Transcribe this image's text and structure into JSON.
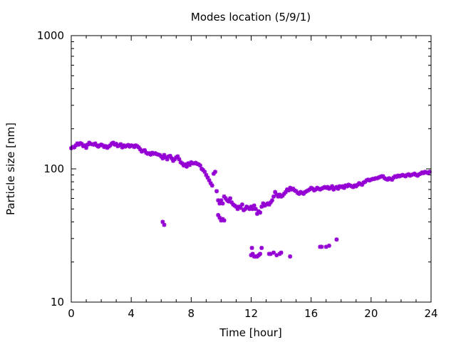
{
  "chart_data": {
    "type": "scatter",
    "title": "Modes location (5/9/1)",
    "xlabel": "Time [hour]",
    "ylabel": "Particle size [nm]",
    "xlim": [
      0,
      24
    ],
    "ylim": [
      10,
      1000
    ],
    "yscale": "log",
    "xticks": [
      0,
      4,
      8,
      12,
      16,
      20,
      24
    ],
    "xtick_labels": [
      "0",
      "4",
      "8",
      "12",
      "16",
      "20",
      "24"
    ],
    "yticks": [
      10,
      100,
      1000
    ],
    "ytick_labels": [
      "10",
      "100",
      "1000"
    ],
    "grid": false,
    "legend": "none",
    "marker_color": "#9400D3",
    "series": [
      {
        "points": [
          [
            0.0,
            143
          ],
          [
            0.1,
            146
          ],
          [
            0.2,
            145
          ],
          [
            0.3,
            150
          ],
          [
            0.4,
            155
          ],
          [
            0.5,
            152
          ],
          [
            0.6,
            156
          ],
          [
            0.7,
            154
          ],
          [
            0.8,
            148
          ],
          [
            0.9,
            150
          ],
          [
            1.0,
            144
          ],
          [
            1.1,
            152
          ],
          [
            1.2,
            157
          ],
          [
            1.3,
            154
          ],
          [
            1.4,
            153
          ],
          [
            1.5,
            152
          ],
          [
            1.6,
            155
          ],
          [
            1.7,
            150
          ],
          [
            1.8,
            147
          ],
          [
            1.9,
            150
          ],
          [
            2.0,
            152
          ],
          [
            2.1,
            150
          ],
          [
            2.2,
            146
          ],
          [
            2.3,
            148
          ],
          [
            2.4,
            144
          ],
          [
            2.5,
            147
          ],
          [
            2.6,
            150
          ],
          [
            2.7,
            155
          ],
          [
            2.8,
            157
          ],
          [
            2.9,
            152
          ],
          [
            3.0,
            154
          ],
          [
            3.1,
            148
          ],
          [
            3.2,
            150
          ],
          [
            3.3,
            153
          ],
          [
            3.4,
            145
          ],
          [
            3.5,
            150
          ],
          [
            3.6,
            147
          ],
          [
            3.7,
            149
          ],
          [
            3.8,
            151
          ],
          [
            3.9,
            147
          ],
          [
            4.0,
            150
          ],
          [
            4.1,
            149
          ],
          [
            4.2,
            146
          ],
          [
            4.3,
            150
          ],
          [
            4.4,
            148
          ],
          [
            4.5,
            145
          ],
          [
            4.6,
            140
          ],
          [
            4.7,
            135
          ],
          [
            4.8,
            137
          ],
          [
            4.9,
            138
          ],
          [
            5.0,
            132
          ],
          [
            5.1,
            130
          ],
          [
            5.2,
            131
          ],
          [
            5.3,
            128
          ],
          [
            5.4,
            132
          ],
          [
            5.5,
            130
          ],
          [
            5.6,
            131
          ],
          [
            5.7,
            129
          ],
          [
            5.8,
            128
          ],
          [
            5.9,
            127
          ],
          [
            6.0,
            124
          ],
          [
            6.1,
            120
          ],
          [
            6.2,
            127
          ],
          [
            6.3,
            122
          ],
          [
            6.4,
            118
          ],
          [
            6.5,
            124
          ],
          [
            6.6,
            125
          ],
          [
            6.7,
            120
          ],
          [
            6.8,
            115
          ],
          [
            6.9,
            118
          ],
          [
            7.0,
            122
          ],
          [
            7.1,
            124
          ],
          [
            7.2,
            118
          ],
          [
            7.3,
            112
          ],
          [
            7.4,
            110
          ],
          [
            7.5,
            106
          ],
          [
            7.6,
            108
          ],
          [
            7.7,
            104
          ],
          [
            7.8,
            110
          ],
          [
            7.9,
            107
          ],
          [
            8.0,
            112
          ],
          [
            8.1,
            110
          ],
          [
            8.2,
            110
          ],
          [
            8.3,
            111
          ],
          [
            8.4,
            109
          ],
          [
            8.5,
            108
          ],
          [
            8.6,
            106
          ],
          [
            8.7,
            100
          ],
          [
            8.8,
            98
          ],
          [
            8.9,
            95
          ],
          [
            9.0,
            90
          ],
          [
            9.1,
            86
          ],
          [
            9.2,
            82
          ],
          [
            9.3,
            78
          ],
          [
            9.4,
            75
          ],
          [
            9.5,
            92
          ],
          [
            9.6,
            95
          ],
          [
            9.7,
            68
          ],
          [
            9.8,
            58
          ],
          [
            9.9,
            55
          ],
          [
            10.0,
            58
          ],
          [
            10.1,
            55
          ],
          [
            10.2,
            62
          ],
          [
            10.3,
            60
          ],
          [
            10.4,
            58
          ],
          [
            10.5,
            57
          ],
          [
            10.6,
            60
          ],
          [
            10.7,
            56
          ],
          [
            10.8,
            54
          ],
          [
            10.9,
            53
          ],
          [
            11.0,
            52
          ],
          [
            11.1,
            50
          ],
          [
            11.2,
            52
          ],
          [
            11.3,
            51
          ],
          [
            11.4,
            54
          ],
          [
            11.5,
            49
          ],
          [
            11.6,
            50
          ],
          [
            11.7,
            52
          ],
          [
            11.8,
            51
          ],
          [
            11.9,
            50
          ],
          [
            12.0,
            52
          ],
          [
            12.1,
            50
          ],
          [
            12.2,
            53
          ],
          [
            12.3,
            50
          ],
          [
            12.4,
            46
          ],
          [
            12.5,
            48
          ],
          [
            12.6,
            47
          ],
          [
            12.7,
            52
          ],
          [
            12.8,
            55
          ],
          [
            12.9,
            53
          ],
          [
            13.0,
            54
          ],
          [
            13.1,
            55
          ],
          [
            13.2,
            54
          ],
          [
            13.3,
            56
          ],
          [
            13.4,
            58
          ],
          [
            13.5,
            62
          ],
          [
            13.6,
            67
          ],
          [
            13.7,
            64
          ],
          [
            13.8,
            62
          ],
          [
            13.9,
            64
          ],
          [
            14.0,
            62
          ],
          [
            14.1,
            63
          ],
          [
            14.2,
            65
          ],
          [
            14.3,
            67
          ],
          [
            14.4,
            70
          ],
          [
            14.5,
            69
          ],
          [
            14.6,
            72
          ],
          [
            14.7,
            70
          ],
          [
            14.8,
            71
          ],
          [
            14.9,
            69
          ],
          [
            15.0,
            68
          ],
          [
            15.1,
            66
          ],
          [
            15.2,
            65
          ],
          [
            15.3,
            67
          ],
          [
            15.4,
            66
          ],
          [
            15.5,
            65
          ],
          [
            15.6,
            67
          ],
          [
            15.7,
            68
          ],
          [
            15.8,
            69
          ],
          [
            15.9,
            70
          ],
          [
            16.0,
            72
          ],
          [
            16.1,
            71
          ],
          [
            16.2,
            69
          ],
          [
            16.3,
            70
          ],
          [
            16.4,
            72
          ],
          [
            16.5,
            71
          ],
          [
            16.6,
            70
          ],
          [
            16.7,
            71
          ],
          [
            16.8,
            72
          ],
          [
            16.9,
            73
          ],
          [
            17.0,
            72
          ],
          [
            17.1,
            73
          ],
          [
            17.2,
            71
          ],
          [
            17.3,
            72
          ],
          [
            17.4,
            74
          ],
          [
            17.5,
            70
          ],
          [
            17.6,
            72
          ],
          [
            17.7,
            73
          ],
          [
            17.8,
            71
          ],
          [
            17.9,
            74
          ],
          [
            18.0,
            73
          ],
          [
            18.1,
            74
          ],
          [
            18.2,
            72
          ],
          [
            18.3,
            75
          ],
          [
            18.4,
            74
          ],
          [
            18.5,
            76
          ],
          [
            18.6,
            75
          ],
          [
            18.7,
            74
          ],
          [
            18.8,
            73
          ],
          [
            18.9,
            75
          ],
          [
            19.0,
            74
          ],
          [
            19.1,
            76
          ],
          [
            19.2,
            78
          ],
          [
            19.3,
            77
          ],
          [
            19.4,
            76
          ],
          [
            19.5,
            79
          ],
          [
            19.6,
            80
          ],
          [
            19.7,
            82
          ],
          [
            19.8,
            83
          ],
          [
            19.9,
            82
          ],
          [
            20.0,
            83
          ],
          [
            20.1,
            84
          ],
          [
            20.2,
            84
          ],
          [
            20.3,
            85
          ],
          [
            20.4,
            85
          ],
          [
            20.5,
            86
          ],
          [
            20.6,
            87
          ],
          [
            20.7,
            88
          ],
          [
            20.8,
            88
          ],
          [
            20.9,
            85
          ],
          [
            21.0,
            84
          ],
          [
            21.1,
            83
          ],
          [
            21.2,
            85
          ],
          [
            21.3,
            84
          ],
          [
            21.4,
            83
          ],
          [
            21.5,
            86
          ],
          [
            21.6,
            88
          ],
          [
            21.7,
            87
          ],
          [
            21.8,
            89
          ],
          [
            21.9,
            88
          ],
          [
            22.0,
            89
          ],
          [
            22.1,
            90
          ],
          [
            22.2,
            89
          ],
          [
            22.3,
            88
          ],
          [
            22.4,
            90
          ],
          [
            22.5,
            91
          ],
          [
            22.6,
            89
          ],
          [
            22.7,
            90
          ],
          [
            22.8,
            91
          ],
          [
            22.9,
            92
          ],
          [
            23.0,
            90
          ],
          [
            23.1,
            89
          ],
          [
            23.2,
            91
          ],
          [
            23.3,
            92
          ],
          [
            23.4,
            94
          ],
          [
            23.5,
            93
          ],
          [
            23.6,
            95
          ],
          [
            23.7,
            94
          ],
          [
            23.8,
            93
          ],
          [
            23.9,
            95
          ],
          [
            6.1,
            40
          ],
          [
            6.2,
            38
          ],
          [
            9.8,
            45
          ],
          [
            9.9,
            43
          ],
          [
            10.0,
            41
          ],
          [
            10.1,
            42
          ],
          [
            10.2,
            41
          ],
          [
            12.0,
            22.5
          ],
          [
            12.05,
            25.5
          ],
          [
            12.1,
            23
          ],
          [
            12.2,
            22
          ],
          [
            12.3,
            22
          ],
          [
            12.4,
            22
          ],
          [
            12.5,
            22.5
          ],
          [
            12.6,
            23
          ],
          [
            12.7,
            25.5
          ],
          [
            13.2,
            23
          ],
          [
            13.3,
            23
          ],
          [
            13.5,
            23.5
          ],
          [
            13.7,
            22.5
          ],
          [
            13.9,
            23
          ],
          [
            14.0,
            23.5
          ],
          [
            14.6,
            22
          ],
          [
            16.6,
            26
          ],
          [
            16.7,
            26
          ],
          [
            17.0,
            26
          ],
          [
            17.2,
            26.5
          ],
          [
            17.7,
            29.5
          ]
        ]
      }
    ]
  }
}
